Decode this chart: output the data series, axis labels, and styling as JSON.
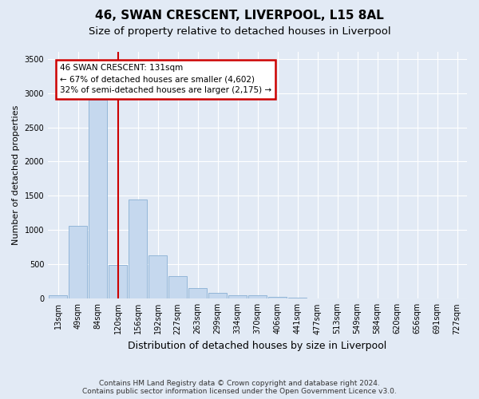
{
  "title1": "46, SWAN CRESCENT, LIVERPOOL, L15 8AL",
  "title2": "Size of property relative to detached houses in Liverpool",
  "xlabel": "Distribution of detached houses by size in Liverpool",
  "ylabel": "Number of detached properties",
  "annotation_title": "46 SWAN CRESCENT: 131sqm",
  "annotation_line1": "← 67% of detached houses are smaller (4,602)",
  "annotation_line2": "32% of semi-detached houses are larger (2,175) →",
  "footer1": "Contains HM Land Registry data © Crown copyright and database right 2024.",
  "footer2": "Contains public sector information licensed under the Open Government Licence v3.0.",
  "bar_labels": [
    "13sqm",
    "49sqm",
    "84sqm",
    "120sqm",
    "156sqm",
    "192sqm",
    "227sqm",
    "263sqm",
    "299sqm",
    "334sqm",
    "370sqm",
    "406sqm",
    "441sqm",
    "477sqm",
    "513sqm",
    "549sqm",
    "584sqm",
    "620sqm",
    "656sqm",
    "691sqm",
    "727sqm"
  ],
  "bar_values": [
    50,
    1060,
    2900,
    490,
    1450,
    630,
    330,
    160,
    90,
    55,
    45,
    30,
    15,
    5,
    3,
    2,
    2,
    1,
    1,
    1,
    0
  ],
  "bar_color": "#c5d8ee",
  "bar_edge_color": "#88afd4",
  "vline_color": "#cc0000",
  "vline_position": 3.0,
  "annotation_box_edge_color": "#cc0000",
  "ylim_max": 3600,
  "yticks": [
    0,
    500,
    1000,
    1500,
    2000,
    2500,
    3000,
    3500
  ],
  "bg_color": "#e2eaf5",
  "grid_color": "#ffffff",
  "title1_fontsize": 11,
  "title2_fontsize": 9.5,
  "tick_fontsize": 7,
  "ylabel_fontsize": 8,
  "xlabel_fontsize": 9,
  "annotation_fontsize": 7.5,
  "footer_fontsize": 6.5
}
